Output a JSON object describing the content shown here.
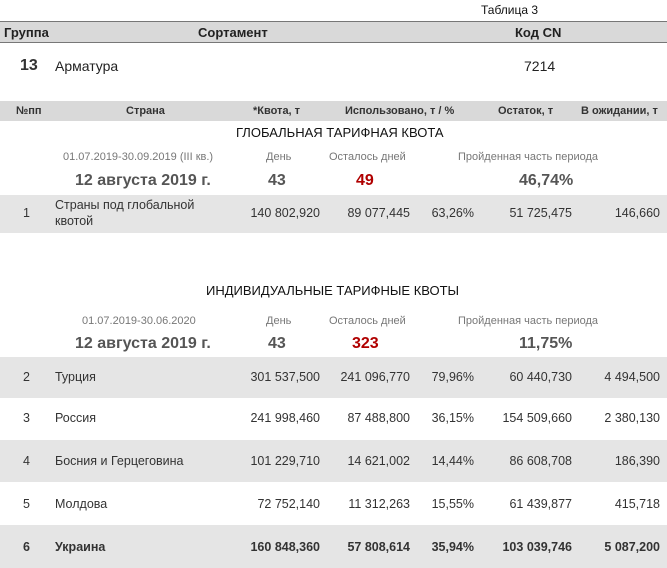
{
  "caption": "Таблица 3",
  "header": {
    "group": "Группа",
    "assortment": "Сортамент",
    "cn_code": "Код CN"
  },
  "product": {
    "group_number": "13",
    "name": "Арматура",
    "cn_code": "7214"
  },
  "columns": {
    "num": "№пп",
    "country": "Страна",
    "quota": "*Квота, т",
    "used": "Использовано, т / %",
    "remaining": "Остаток, т",
    "pending": "В ожидании, т"
  },
  "global_quota": {
    "title": "ГЛОБАЛЬНАЯ ТАРИФНАЯ КВОТА",
    "period": "01.07.2019-30.09.2019 (III кв.)",
    "day_label": "День",
    "days_left_label": "Осталось дней",
    "passed_label": "Пройденная часть периода",
    "date": "12 августа 2019 г.",
    "day": "43",
    "days_left": "49",
    "passed": "46,74%",
    "rows": [
      {
        "num": "1",
        "country": "Страны под глобальной квотой",
        "quota": "140 802,920",
        "used": "89 077,445",
        "used_pct": "63,26%",
        "remaining": "51 725,475",
        "pending": "146,660"
      }
    ]
  },
  "individual_quota": {
    "title": "ИНДИВИДУАЛЬНЫЕ ТАРИФНЫЕ КВОТЫ",
    "period": "01.07.2019-30.06.2020",
    "day_label": "День",
    "days_left_label": "Осталось дней",
    "passed_label": "Пройденная часть периода",
    "date": "12 августа 2019 г.",
    "day": "43",
    "days_left": "323",
    "passed": "11,75%",
    "rows": [
      {
        "num": "2",
        "country": "Турция",
        "quota": "301 537,500",
        "used": "241 096,770",
        "used_pct": "79,96%",
        "remaining": "60 440,730",
        "pending": "4 494,500"
      },
      {
        "num": "3",
        "country": "Россия",
        "quota": "241 998,460",
        "used": "87 488,800",
        "used_pct": "36,15%",
        "remaining": "154 509,660",
        "pending": "2 380,130"
      },
      {
        "num": "4",
        "country": "Босния и Герцеговина",
        "quota": "101 229,710",
        "used": "14 621,002",
        "used_pct": "14,44%",
        "remaining": "86 608,708",
        "pending": "186,390"
      },
      {
        "num": "5",
        "country": "Молдова",
        "quota": "72 752,140",
        "used": "11 312,263",
        "used_pct": "15,55%",
        "remaining": "61 439,877",
        "pending": "415,718"
      },
      {
        "num": "6",
        "country": "Украина",
        "quota": "160 848,360",
        "used": "57 808,614",
        "used_pct": "35,94%",
        "remaining": "103 039,746",
        "pending": "5 087,200"
      }
    ]
  }
}
